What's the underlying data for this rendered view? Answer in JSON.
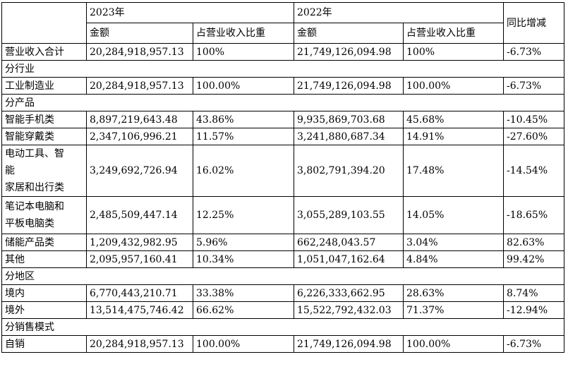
{
  "header": {
    "year_2023": "2023年",
    "year_2022": "2022年",
    "yoy": "同比增减",
    "amount": "金额",
    "ratio": "占营业收入比重"
  },
  "total": {
    "label": "营业收入合计",
    "amount_2023": "20,284,918,957.13",
    "ratio_2023": "100%",
    "amount_2022": "21,749,126,094.98",
    "ratio_2022": "100%",
    "yoy": "-6.73%"
  },
  "sections": {
    "industry": "分行业",
    "product": "分产品",
    "region": "分地区",
    "sales": "分销售模式"
  },
  "rows": [
    {
      "label": "工业制造业",
      "amount_2023": "20,284,918,957.13",
      "ratio_2023": "100.00%",
      "amount_2022": "21,749,126,094.98",
      "ratio_2022": "100.00%",
      "yoy": "-6.73%"
    },
    {
      "label": "智能手机类",
      "amount_2023": "8,897,219,643.48",
      "ratio_2023": "43.86%",
      "amount_2022": "9,935,869,703.68",
      "ratio_2022": "45.68%",
      "yoy": "-10.45%"
    },
    {
      "label": "智能穿戴类",
      "amount_2023": "2,347,106,996.21",
      "ratio_2023": "11.57%",
      "amount_2022": "3,241,880,687.34",
      "ratio_2022": "14.91%",
      "yoy": "-27.60%"
    },
    {
      "label": "电动工具、智能家居和出行类",
      "amount_2023": "3,249,692,726.94",
      "ratio_2023": "16.02%",
      "amount_2022": "3,802,791,394.20",
      "ratio_2022": "17.48%",
      "yoy": "-14.54%"
    },
    {
      "label": "笔记本电脑和平板电脑类",
      "amount_2023": "2,485,509,447.14",
      "ratio_2023": "12.25%",
      "amount_2022": "3,055,289,103.55",
      "ratio_2022": "14.05%",
      "yoy": "-18.65%"
    },
    {
      "label": "储能产品类",
      "amount_2023": "1,209,432,982.95",
      "ratio_2023": "5.96%",
      "amount_2022": "662,248,043.57",
      "ratio_2022": "3.04%",
      "yoy": "82.63%"
    },
    {
      "label": "其他",
      "amount_2023": "2,095,957,160.41",
      "ratio_2023": "10.34%",
      "amount_2022": "1,051,047,162.64",
      "ratio_2022": "4.84%",
      "yoy": "99.42%"
    },
    {
      "label": "境内",
      "amount_2023": "6,770,443,210.71",
      "ratio_2023": "33.38%",
      "amount_2022": "6,226,333,662.95",
      "ratio_2022": "28.63%",
      "yoy": "8.74%"
    },
    {
      "label": "境外",
      "amount_2023": "13,514,475,746.42",
      "ratio_2023": "66.62%",
      "amount_2022": "15,522,792,432.03",
      "ratio_2022": "71.37%",
      "yoy": "-12.94%"
    },
    {
      "label": "自销",
      "amount_2023": "20,284,918,957.13",
      "ratio_2023": "100.00%",
      "amount_2022": "21,749,126,094.98",
      "ratio_2022": "100.00%",
      "yoy": "-6.73%"
    }
  ],
  "row_label_lines": {
    "r3_line1": "电动工具、智",
    "r3_line2": "能",
    "r3_line3": "家居和出行类",
    "r4_line1": "笔记本电脑和",
    "r4_line2": "平板电脑类"
  }
}
